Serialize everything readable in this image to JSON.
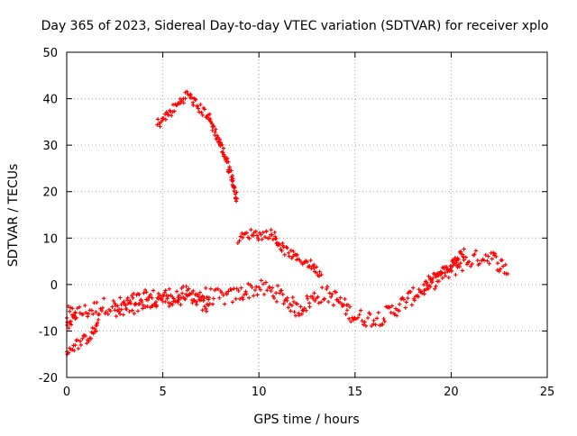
{
  "chart_data": {
    "type": "scatter",
    "title": "Day 365 of 2023, Sidereal Day-to-day VTEC variation (SDTVAR) for receiver xplo",
    "xlabel": "GPS time / hours",
    "ylabel": "SDTVAR / TECUs",
    "xlim": [
      0,
      25
    ],
    "ylim": [
      -20,
      50
    ],
    "xticks": [
      0,
      5,
      10,
      15,
      20,
      25
    ],
    "yticks": [
      -20,
      -10,
      0,
      10,
      20,
      30,
      40,
      50
    ],
    "grid": true,
    "legend": "none",
    "marker_color": "#ff0000",
    "series": [
      {
        "name": "main-baseline-band",
        "band": 1.8,
        "points": [
          [
            0,
            -6.5
          ],
          [
            0.5,
            -6.2
          ],
          [
            1,
            -5.8
          ],
          [
            1.5,
            -5.2
          ],
          [
            2,
            -4.5
          ],
          [
            2.5,
            -4.8
          ],
          [
            3,
            -4.2
          ],
          [
            3.5,
            -3.5
          ],
          [
            4,
            -3
          ],
          [
            4.5,
            -2.8
          ],
          [
            5,
            -2.5
          ],
          [
            5.5,
            -2.3
          ],
          [
            6,
            -2.2
          ],
          [
            6.5,
            -2
          ],
          [
            7,
            -2.2
          ],
          [
            7.5,
            -2.5
          ],
          [
            8,
            -2.8
          ],
          [
            8.5,
            -2.6
          ],
          [
            9,
            -2
          ],
          [
            9.5,
            -1.2
          ],
          [
            10,
            -0.8
          ],
          [
            10.5,
            -1.2
          ],
          [
            11,
            -2
          ],
          [
            11.5,
            -3.5
          ],
          [
            12,
            -5.5
          ],
          [
            12.5,
            -4
          ],
          [
            13,
            -2.5
          ],
          [
            13.5,
            -2
          ],
          [
            14,
            -3
          ],
          [
            14.5,
            -5
          ],
          [
            15,
            -7
          ],
          [
            15.5,
            -7.2
          ],
          [
            16,
            -7.3
          ],
          [
            16.5,
            -6.8
          ],
          [
            17,
            -5.5
          ],
          [
            17.5,
            -4
          ],
          [
            18,
            -2.5
          ],
          [
            18.5,
            -1
          ],
          [
            19,
            0.5
          ],
          [
            19.5,
            1.8
          ],
          [
            20,
            3
          ],
          [
            20.5,
            4.5
          ],
          [
            21,
            5.3
          ],
          [
            21.5,
            5.8
          ],
          [
            22,
            6.2
          ],
          [
            22.5,
            4.5
          ],
          [
            23,
            3
          ]
        ]
      },
      {
        "name": "lower-band",
        "band": 1.4,
        "points": [
          [
            2.5,
            -6
          ],
          [
            3,
            -5.5
          ],
          [
            3.5,
            -5
          ],
          [
            4,
            -4
          ],
          [
            4.5,
            -3.5
          ],
          [
            5,
            -3
          ],
          [
            5.5,
            -3.5
          ],
          [
            6,
            -3
          ],
          [
            6.5,
            -2.5
          ],
          [
            7,
            -4
          ],
          [
            7.5,
            -5.5
          ]
        ]
      },
      {
        "name": "early-dip",
        "band": 1.2,
        "points": [
          [
            0,
            -14.2
          ],
          [
            0.4,
            -13.2
          ],
          [
            0.8,
            -12.3
          ],
          [
            1.2,
            -11
          ],
          [
            1.5,
            -9.5
          ],
          [
            1.7,
            -8.5
          ]
        ]
      },
      {
        "name": "early-spike",
        "band": 1,
        "points": [
          [
            0,
            -9
          ],
          [
            0.3,
            -7.5
          ],
          [
            0.5,
            -6
          ]
        ]
      },
      {
        "name": "upper-arc",
        "band": 1.1,
        "points": [
          [
            4.7,
            34.5
          ],
          [
            5,
            35.5
          ],
          [
            5.5,
            37.5
          ],
          [
            6,
            39.8
          ],
          [
            6.3,
            41
          ],
          [
            6.6,
            39.5
          ],
          [
            7,
            37.5
          ],
          [
            7.3,
            36.8
          ],
          [
            7.6,
            34
          ],
          [
            8,
            30
          ],
          [
            8.3,
            27
          ],
          [
            8.6,
            23
          ],
          [
            8.8,
            19
          ],
          [
            8.9,
            18.5
          ]
        ]
      },
      {
        "name": "mid-arc",
        "band": 1,
        "points": [
          [
            8.9,
            9.8
          ],
          [
            9.3,
            10.5
          ],
          [
            9.7,
            11.2
          ],
          [
            10,
            10.5
          ],
          [
            10.3,
            10.8
          ],
          [
            10.6,
            11
          ],
          [
            10.8,
            10.5
          ],
          [
            11,
            9
          ],
          [
            11.3,
            7.5
          ],
          [
            11.7,
            6.5
          ],
          [
            12,
            5.5
          ],
          [
            12.4,
            5
          ],
          [
            12.8,
            4
          ],
          [
            13,
            3
          ],
          [
            13.3,
            2.2
          ]
        ]
      },
      {
        "name": "right-upper-band",
        "band": 1.2,
        "points": [
          [
            18.6,
            -0.5
          ],
          [
            19,
            1
          ],
          [
            19.5,
            2.5
          ],
          [
            20,
            4
          ],
          [
            20.4,
            6
          ],
          [
            20.7,
            7.5
          ]
        ]
      }
    ]
  }
}
